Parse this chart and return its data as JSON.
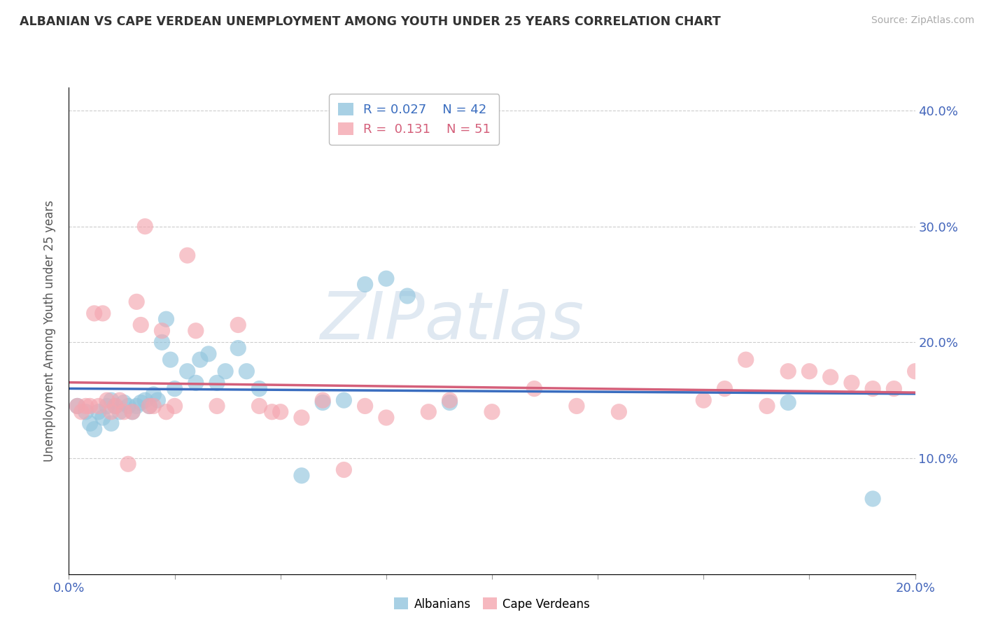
{
  "title": "ALBANIAN VS CAPE VERDEAN UNEMPLOYMENT AMONG YOUTH UNDER 25 YEARS CORRELATION CHART",
  "source": "Source: ZipAtlas.com",
  "ylabel": "Unemployment Among Youth under 25 years",
  "xlim": [
    0.0,
    0.2
  ],
  "ylim": [
    0.0,
    0.42
  ],
  "yticks": [
    0.0,
    0.1,
    0.2,
    0.3,
    0.4
  ],
  "ytick_labels_right": [
    "",
    "10.0%",
    "20.0%",
    "30.0%",
    "40.0%"
  ],
  "albanian_color": "#92c5de",
  "capeverdean_color": "#f4a6b0",
  "albanian_line_color": "#3a6dbf",
  "capeverdean_line_color": "#d45f7a",
  "legend_r_albanian": "0.027",
  "legend_n_albanian": "42",
  "legend_r_capeverdean": "0.131",
  "legend_n_capeverdean": "51",
  "albanian_x": [
    0.002,
    0.004,
    0.005,
    0.006,
    0.007,
    0.008,
    0.009,
    0.01,
    0.01,
    0.011,
    0.012,
    0.013,
    0.014,
    0.015,
    0.016,
    0.017,
    0.018,
    0.019,
    0.02,
    0.021,
    0.022,
    0.023,
    0.024,
    0.025,
    0.028,
    0.03,
    0.031,
    0.033,
    0.035,
    0.037,
    0.04,
    0.042,
    0.045,
    0.055,
    0.06,
    0.065,
    0.07,
    0.075,
    0.08,
    0.09,
    0.17,
    0.19
  ],
  "albanian_y": [
    0.145,
    0.14,
    0.13,
    0.125,
    0.14,
    0.135,
    0.145,
    0.13,
    0.15,
    0.145,
    0.14,
    0.148,
    0.145,
    0.14,
    0.145,
    0.148,
    0.15,
    0.145,
    0.155,
    0.15,
    0.2,
    0.22,
    0.185,
    0.16,
    0.175,
    0.165,
    0.185,
    0.19,
    0.165,
    0.175,
    0.195,
    0.175,
    0.16,
    0.085,
    0.148,
    0.15,
    0.25,
    0.255,
    0.24,
    0.148,
    0.148,
    0.065
  ],
  "capeverdean_x": [
    0.002,
    0.003,
    0.004,
    0.005,
    0.006,
    0.007,
    0.008,
    0.009,
    0.01,
    0.011,
    0.012,
    0.013,
    0.014,
    0.015,
    0.016,
    0.017,
    0.018,
    0.019,
    0.02,
    0.022,
    0.023,
    0.025,
    0.028,
    0.03,
    0.035,
    0.04,
    0.045,
    0.048,
    0.05,
    0.055,
    0.06,
    0.065,
    0.07,
    0.075,
    0.085,
    0.09,
    0.1,
    0.11,
    0.12,
    0.13,
    0.15,
    0.155,
    0.16,
    0.165,
    0.17,
    0.175,
    0.18,
    0.185,
    0.19,
    0.195,
    0.2
  ],
  "capeverdean_y": [
    0.145,
    0.14,
    0.145,
    0.145,
    0.225,
    0.145,
    0.225,
    0.15,
    0.14,
    0.145,
    0.15,
    0.14,
    0.095,
    0.14,
    0.235,
    0.215,
    0.3,
    0.145,
    0.145,
    0.21,
    0.14,
    0.145,
    0.275,
    0.21,
    0.145,
    0.215,
    0.145,
    0.14,
    0.14,
    0.135,
    0.15,
    0.09,
    0.145,
    0.135,
    0.14,
    0.15,
    0.14,
    0.16,
    0.145,
    0.14,
    0.15,
    0.16,
    0.185,
    0.145,
    0.175,
    0.175,
    0.17,
    0.165,
    0.16,
    0.16,
    0.175
  ],
  "background_color": "#ffffff",
  "grid_color": "#cccccc",
  "watermark_zip": "ZIP",
  "watermark_atlas": "atlas"
}
